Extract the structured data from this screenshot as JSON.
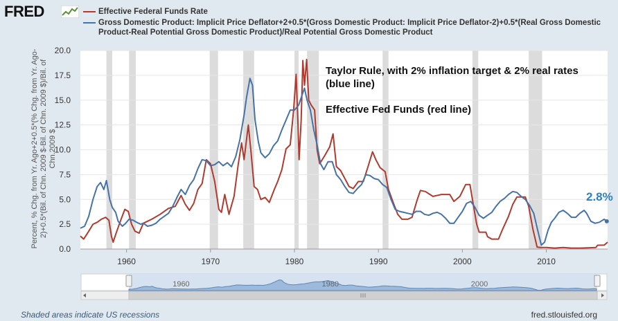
{
  "header": {
    "logo": "FRED",
    "logo_icon": "line-chart-icon"
  },
  "legend": [
    {
      "label": "Effective Federal Funds Rate",
      "color": "#b03a2e"
    },
    {
      "label": "Gross Domestic Product: Implicit Price Deflator+2+0.5*(Gross Domestic Product: Implicit Price Deflator-2)+0.5*(Real Gross Domestic Product-Real Potential Gross Domestic Product)/Real Potential Gross Domestic Product",
      "color": "#4572a7"
    }
  ],
  "annotations": {
    "taylor_line1": "Taylor Rule, with 2% inflation target & 2% real rates",
    "taylor_line2": "(blue line)",
    "fedfunds": "Effective Fed Funds (red line)",
    "last_value": "2.8%"
  },
  "footer": {
    "left": "Shaded areas indicate US recessions",
    "right": "fred.stlouisfed.org"
  },
  "chart_data": {
    "type": "line",
    "ylabel": "Percent, % Chg. from Yr. Ago+2+0.5*(% Chg. from Yr. Ago-2)+0.5*(Bil. of Chn. 2009 $-Bil. of Chn. 2009 $)/Bil. of Chn.2009 $",
    "xlim": [
      1954.5,
      2017.3
    ],
    "ylim": [
      0,
      20
    ],
    "yticks": [
      "0.0",
      "2.5",
      "5.0",
      "7.5",
      "10.0",
      "12.5",
      "15.0",
      "17.5",
      "20.0"
    ],
    "xticks": [
      "1960",
      "1970",
      "1980",
      "1990",
      "2000",
      "2010"
    ],
    "navigator_ticks": [
      "1960",
      "1980",
      "2000"
    ],
    "grid": true,
    "legend_position": "top",
    "recessions": [
      [
        1957.6,
        1958.3
      ],
      [
        1960.3,
        1961.1
      ],
      [
        1969.9,
        1970.9
      ],
      [
        1973.9,
        1975.2
      ],
      [
        1980.0,
        1980.5
      ],
      [
        1981.5,
        1982.9
      ],
      [
        1990.5,
        1991.2
      ],
      [
        2001.2,
        2001.9
      ],
      [
        2007.9,
        2009.5
      ]
    ],
    "series": [
      {
        "name": "Effective Federal Funds Rate",
        "color": "#b03a2e",
        "points": [
          [
            1954.5,
            1.3
          ],
          [
            1954.9,
            1.0
          ],
          [
            1955.5,
            1.8
          ],
          [
            1956.0,
            2.5
          ],
          [
            1956.5,
            2.7
          ],
          [
            1957.0,
            3.0
          ],
          [
            1957.5,
            3.2
          ],
          [
            1957.9,
            2.9
          ],
          [
            1958.2,
            1.3
          ],
          [
            1958.4,
            0.7
          ],
          [
            1958.8,
            1.7
          ],
          [
            1959.3,
            2.9
          ],
          [
            1959.8,
            4.0
          ],
          [
            1960.2,
            3.8
          ],
          [
            1960.6,
            2.5
          ],
          [
            1961.0,
            1.8
          ],
          [
            1961.5,
            1.6
          ],
          [
            1962.0,
            2.6
          ],
          [
            1962.5,
            2.8
          ],
          [
            1963.0,
            3.0
          ],
          [
            1964.0,
            3.5
          ],
          [
            1965.0,
            4.1
          ],
          [
            1965.8,
            4.3
          ],
          [
            1966.5,
            5.4
          ],
          [
            1967.0,
            4.5
          ],
          [
            1967.5,
            3.9
          ],
          [
            1968.0,
            4.6
          ],
          [
            1968.5,
            6.0
          ],
          [
            1969.0,
            6.6
          ],
          [
            1969.5,
            9.0
          ],
          [
            1970.0,
            8.6
          ],
          [
            1970.5,
            6.8
          ],
          [
            1971.0,
            4.0
          ],
          [
            1971.3,
            3.7
          ],
          [
            1971.7,
            5.5
          ],
          [
            1972.2,
            3.5
          ],
          [
            1972.8,
            5.3
          ],
          [
            1973.3,
            8.5
          ],
          [
            1973.7,
            10.7
          ],
          [
            1974.0,
            9.0
          ],
          [
            1974.5,
            12.5
          ],
          [
            1974.8,
            10.0
          ],
          [
            1975.2,
            6.3
          ],
          [
            1975.6,
            6.0
          ],
          [
            1976.0,
            5.0
          ],
          [
            1976.5,
            5.2
          ],
          [
            1977.0,
            4.7
          ],
          [
            1977.6,
            6.0
          ],
          [
            1978.0,
            6.8
          ],
          [
            1978.5,
            8.0
          ],
          [
            1979.0,
            10.1
          ],
          [
            1979.5,
            10.5
          ],
          [
            1979.9,
            14.0
          ],
          [
            1980.2,
            17.6
          ],
          [
            1980.4,
            13.0
          ],
          [
            1980.55,
            9.0
          ],
          [
            1980.8,
            13.0
          ],
          [
            1981.0,
            19.0
          ],
          [
            1981.2,
            16.5
          ],
          [
            1981.45,
            19.1
          ],
          [
            1981.7,
            15.0
          ],
          [
            1982.0,
            14.5
          ],
          [
            1982.4,
            14.0
          ],
          [
            1982.7,
            10.0
          ],
          [
            1983.0,
            8.6
          ],
          [
            1983.6,
            9.4
          ],
          [
            1984.2,
            10.3
          ],
          [
            1984.6,
            11.6
          ],
          [
            1985.0,
            8.3
          ],
          [
            1985.5,
            7.9
          ],
          [
            1986.5,
            6.3
          ],
          [
            1987.0,
            6.1
          ],
          [
            1987.6,
            6.8
          ],
          [
            1988.2,
            6.8
          ],
          [
            1988.8,
            8.4
          ],
          [
            1989.3,
            9.8
          ],
          [
            1989.7,
            9.0
          ],
          [
            1990.2,
            8.2
          ],
          [
            1990.8,
            7.8
          ],
          [
            1991.2,
            6.0
          ],
          [
            1991.8,
            4.6
          ],
          [
            1992.3,
            3.5
          ],
          [
            1992.8,
            3.0
          ],
          [
            1993.5,
            3.0
          ],
          [
            1994.0,
            3.2
          ],
          [
            1994.6,
            4.9
          ],
          [
            1995.0,
            5.9
          ],
          [
            1995.6,
            5.8
          ],
          [
            1996.5,
            5.3
          ],
          [
            1997.5,
            5.5
          ],
          [
            1998.5,
            5.5
          ],
          [
            1999.0,
            4.8
          ],
          [
            1999.7,
            5.3
          ],
          [
            2000.4,
            6.5
          ],
          [
            2000.9,
            6.5
          ],
          [
            2001.3,
            4.5
          ],
          [
            2001.7,
            2.5
          ],
          [
            2002.0,
            1.7
          ],
          [
            2002.8,
            1.7
          ],
          [
            2003.0,
            1.25
          ],
          [
            2003.5,
            1.0
          ],
          [
            2004.3,
            1.0
          ],
          [
            2004.8,
            2.0
          ],
          [
            2005.5,
            3.3
          ],
          [
            2006.0,
            4.5
          ],
          [
            2006.5,
            5.25
          ],
          [
            2007.5,
            5.25
          ],
          [
            2007.9,
            4.3
          ],
          [
            2008.4,
            2.0
          ],
          [
            2008.9,
            0.2
          ],
          [
            2009.3,
            0.15
          ],
          [
            2010.0,
            0.15
          ],
          [
            2011.0,
            0.1
          ],
          [
            2012.0,
            0.15
          ],
          [
            2013.0,
            0.1
          ],
          [
            2014.0,
            0.1
          ],
          [
            2015.0,
            0.12
          ],
          [
            2015.9,
            0.15
          ],
          [
            2016.1,
            0.38
          ],
          [
            2016.9,
            0.4
          ],
          [
            2017.3,
            0.7
          ]
        ]
      },
      {
        "name": "Gross Domestic Product: Implicit Price Deflator+2+0.5*(Gross Domestic Product: Implicit Price Deflator-2)+0.5*(Real Gross Domestic Product-Real Potential Gross Domestic Product)/Real Potential Gross Domestic Product",
        "color": "#4572a7",
        "points": [
          [
            1954.5,
            2.1
          ],
          [
            1955.0,
            2.3
          ],
          [
            1955.5,
            3.3
          ],
          [
            1956.0,
            5.0
          ],
          [
            1956.5,
            6.3
          ],
          [
            1956.9,
            6.7
          ],
          [
            1957.3,
            6.0
          ],
          [
            1957.6,
            6.9
          ],
          [
            1958.0,
            5.0
          ],
          [
            1958.3,
            4.2
          ],
          [
            1958.7,
            3.7
          ],
          [
            1959.0,
            2.8
          ],
          [
            1959.5,
            2.3
          ],
          [
            1959.9,
            2.6
          ],
          [
            1960.3,
            3.0
          ],
          [
            1960.8,
            2.9
          ],
          [
            1961.2,
            2.7
          ],
          [
            1961.7,
            2.5
          ],
          [
            1962.0,
            2.6
          ],
          [
            1962.5,
            2.3
          ],
          [
            1963.0,
            2.4
          ],
          [
            1963.5,
            2.6
          ],
          [
            1964.0,
            3.0
          ],
          [
            1964.5,
            3.3
          ],
          [
            1965.0,
            3.6
          ],
          [
            1965.5,
            4.3
          ],
          [
            1966.0,
            5.2
          ],
          [
            1966.5,
            6.0
          ],
          [
            1967.0,
            5.5
          ],
          [
            1967.5,
            6.4
          ],
          [
            1968.0,
            7.0
          ],
          [
            1968.5,
            8.1
          ],
          [
            1969.0,
            9.0
          ],
          [
            1969.5,
            8.9
          ],
          [
            1970.0,
            8.4
          ],
          [
            1970.5,
            8.5
          ],
          [
            1971.0,
            8.8
          ],
          [
            1971.5,
            8.4
          ],
          [
            1972.0,
            8.7
          ],
          [
            1972.5,
            8.3
          ],
          [
            1973.0,
            9.3
          ],
          [
            1973.5,
            11.0
          ],
          [
            1974.0,
            13.5
          ],
          [
            1974.3,
            15.3
          ],
          [
            1974.7,
            17.2
          ],
          [
            1975.0,
            16.5
          ],
          [
            1975.3,
            13.0
          ],
          [
            1975.7,
            10.8
          ],
          [
            1976.0,
            9.7
          ],
          [
            1976.5,
            9.2
          ],
          [
            1977.0,
            9.6
          ],
          [
            1977.5,
            10.4
          ],
          [
            1978.0,
            10.9
          ],
          [
            1978.5,
            12.0
          ],
          [
            1979.0,
            13.0
          ],
          [
            1979.5,
            14.0
          ],
          [
            1980.0,
            14.0
          ],
          [
            1980.5,
            14.5
          ],
          [
            1980.9,
            15.5
          ],
          [
            1981.2,
            16.2
          ],
          [
            1981.5,
            15.0
          ],
          [
            1981.9,
            14.0
          ],
          [
            1982.3,
            12.0
          ],
          [
            1982.7,
            10.5
          ],
          [
            1983.1,
            8.6
          ],
          [
            1983.5,
            8.0
          ],
          [
            1984.0,
            8.8
          ],
          [
            1984.5,
            8.8
          ],
          [
            1985.0,
            7.5
          ],
          [
            1985.5,
            7.0
          ],
          [
            1986.0,
            6.3
          ],
          [
            1986.5,
            5.7
          ],
          [
            1987.0,
            5.6
          ],
          [
            1987.5,
            6.1
          ],
          [
            1988.0,
            6.5
          ],
          [
            1988.5,
            7.5
          ],
          [
            1989.0,
            7.4
          ],
          [
            1989.5,
            7.1
          ],
          [
            1990.0,
            7.0
          ],
          [
            1990.5,
            6.5
          ],
          [
            1991.0,
            6.2
          ],
          [
            1991.5,
            5.0
          ],
          [
            1992.0,
            4.0
          ],
          [
            1992.5,
            3.8
          ],
          [
            1993.0,
            3.7
          ],
          [
            1993.5,
            3.6
          ],
          [
            1994.0,
            3.5
          ],
          [
            1994.5,
            3.8
          ],
          [
            1995.0,
            3.8
          ],
          [
            1995.5,
            3.5
          ],
          [
            1996.0,
            3.4
          ],
          [
            1996.5,
            3.6
          ],
          [
            1997.0,
            3.7
          ],
          [
            1997.5,
            3.5
          ],
          [
            1998.0,
            3.1
          ],
          [
            1998.5,
            2.6
          ],
          [
            1999.0,
            2.6
          ],
          [
            1999.5,
            3.2
          ],
          [
            2000.0,
            3.8
          ],
          [
            2000.5,
            4.6
          ],
          [
            2001.0,
            4.8
          ],
          [
            2001.5,
            4.2
          ],
          [
            2002.0,
            3.4
          ],
          [
            2002.5,
            3.1
          ],
          [
            2003.0,
            3.4
          ],
          [
            2003.5,
            3.7
          ],
          [
            2004.0,
            4.3
          ],
          [
            2004.5,
            4.8
          ],
          [
            2005.0,
            5.1
          ],
          [
            2005.5,
            5.5
          ],
          [
            2006.0,
            5.8
          ],
          [
            2006.5,
            5.7
          ],
          [
            2007.0,
            5.3
          ],
          [
            2007.5,
            5.0
          ],
          [
            2008.0,
            4.4
          ],
          [
            2008.5,
            3.6
          ],
          [
            2009.0,
            1.8
          ],
          [
            2009.4,
            0.4
          ],
          [
            2009.8,
            0.7
          ],
          [
            2010.2,
            1.9
          ],
          [
            2010.6,
            2.7
          ],
          [
            2011.0,
            3.1
          ],
          [
            2011.5,
            3.7
          ],
          [
            2012.0,
            3.9
          ],
          [
            2012.5,
            3.6
          ],
          [
            2013.0,
            3.2
          ],
          [
            2013.5,
            3.2
          ],
          [
            2014.0,
            3.6
          ],
          [
            2014.5,
            3.9
          ],
          [
            2014.8,
            3.6
          ],
          [
            2015.3,
            2.8
          ],
          [
            2015.8,
            2.6
          ],
          [
            2016.3,
            2.7
          ],
          [
            2016.9,
            3.0
          ],
          [
            2017.2,
            2.8
          ]
        ]
      }
    ]
  }
}
